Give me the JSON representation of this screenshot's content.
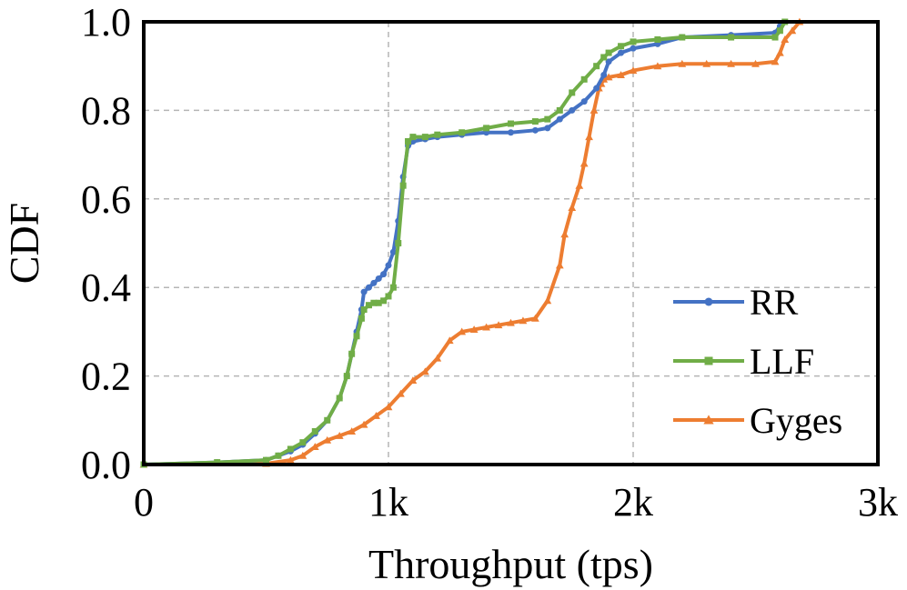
{
  "chart_data": {
    "type": "line",
    "xlabel": "Throughput (tps)",
    "ylabel": "CDF",
    "xlim": [
      0,
      3000
    ],
    "ylim": [
      0,
      1
    ],
    "x_ticks": [
      {
        "value": 0,
        "label": "0"
      },
      {
        "value": 1000,
        "label": "1k"
      },
      {
        "value": 2000,
        "label": "2k"
      },
      {
        "value": 3000,
        "label": "3k"
      }
    ],
    "y_ticks": [
      {
        "value": 0,
        "label": "0.0"
      },
      {
        "value": 0.2,
        "label": "0.2"
      },
      {
        "value": 0.4,
        "label": "0.4"
      },
      {
        "value": 0.6,
        "label": "0.6"
      },
      {
        "value": 0.8,
        "label": "0.8"
      },
      {
        "value": 1.0,
        "label": "1.0"
      }
    ],
    "grid": true,
    "legend_position": "bottom-right",
    "series": [
      {
        "name": "RR",
        "color": "#4472C4",
        "marker": "circle",
        "x": [
          0,
          300,
          500,
          550,
          600,
          650,
          700,
          750,
          800,
          830,
          850,
          870,
          890,
          900,
          920,
          940,
          960,
          980,
          1000,
          1020,
          1040,
          1060,
          1080,
          1100,
          1150,
          1200,
          1300,
          1400,
          1500,
          1600,
          1650,
          1700,
          1750,
          1800,
          1850,
          1880,
          1900,
          1950,
          2000,
          2100,
          2200,
          2400,
          2580,
          2600,
          2620
        ],
        "y": [
          0.0,
          0.005,
          0.01,
          0.02,
          0.03,
          0.045,
          0.07,
          0.1,
          0.15,
          0.2,
          0.25,
          0.3,
          0.35,
          0.39,
          0.4,
          0.41,
          0.42,
          0.43,
          0.45,
          0.48,
          0.55,
          0.65,
          0.72,
          0.73,
          0.735,
          0.74,
          0.745,
          0.75,
          0.75,
          0.755,
          0.76,
          0.78,
          0.8,
          0.82,
          0.85,
          0.88,
          0.91,
          0.93,
          0.94,
          0.95,
          0.965,
          0.97,
          0.975,
          0.99,
          1.0
        ]
      },
      {
        "name": "LLF",
        "color": "#70AD47",
        "marker": "square",
        "x": [
          0,
          300,
          500,
          550,
          600,
          650,
          700,
          750,
          800,
          830,
          850,
          870,
          890,
          900,
          920,
          940,
          960,
          980,
          1000,
          1020,
          1040,
          1060,
          1080,
          1100,
          1150,
          1200,
          1300,
          1400,
          1500,
          1600,
          1650,
          1700,
          1750,
          1800,
          1850,
          1880,
          1900,
          1950,
          2000,
          2100,
          2200,
          2400,
          2580,
          2600,
          2620
        ],
        "y": [
          0.0,
          0.005,
          0.01,
          0.02,
          0.035,
          0.05,
          0.075,
          0.1,
          0.15,
          0.2,
          0.25,
          0.29,
          0.33,
          0.35,
          0.36,
          0.365,
          0.365,
          0.37,
          0.38,
          0.4,
          0.5,
          0.63,
          0.73,
          0.74,
          0.74,
          0.745,
          0.75,
          0.76,
          0.77,
          0.775,
          0.78,
          0.8,
          0.84,
          0.87,
          0.9,
          0.92,
          0.93,
          0.945,
          0.955,
          0.96,
          0.965,
          0.965,
          0.965,
          0.98,
          1.0
        ]
      },
      {
        "name": "Gyges",
        "color": "#ED7D31",
        "marker": "triangle",
        "x": [
          0,
          500,
          600,
          650,
          700,
          750,
          800,
          850,
          900,
          950,
          1000,
          1050,
          1100,
          1150,
          1200,
          1250,
          1300,
          1350,
          1400,
          1450,
          1500,
          1550,
          1600,
          1650,
          1700,
          1720,
          1750,
          1780,
          1800,
          1820,
          1840,
          1860,
          1870,
          1880,
          1900,
          1950,
          2000,
          2100,
          2200,
          2300,
          2400,
          2500,
          2580,
          2600,
          2620,
          2650,
          2680
        ],
        "y": [
          0.0,
          0.002,
          0.01,
          0.02,
          0.04,
          0.055,
          0.065,
          0.075,
          0.09,
          0.11,
          0.13,
          0.16,
          0.19,
          0.21,
          0.24,
          0.28,
          0.3,
          0.305,
          0.31,
          0.315,
          0.32,
          0.325,
          0.33,
          0.37,
          0.45,
          0.52,
          0.58,
          0.63,
          0.68,
          0.74,
          0.8,
          0.85,
          0.86,
          0.87,
          0.875,
          0.88,
          0.89,
          0.9,
          0.905,
          0.905,
          0.905,
          0.905,
          0.91,
          0.93,
          0.96,
          0.98,
          1.0
        ]
      }
    ]
  }
}
